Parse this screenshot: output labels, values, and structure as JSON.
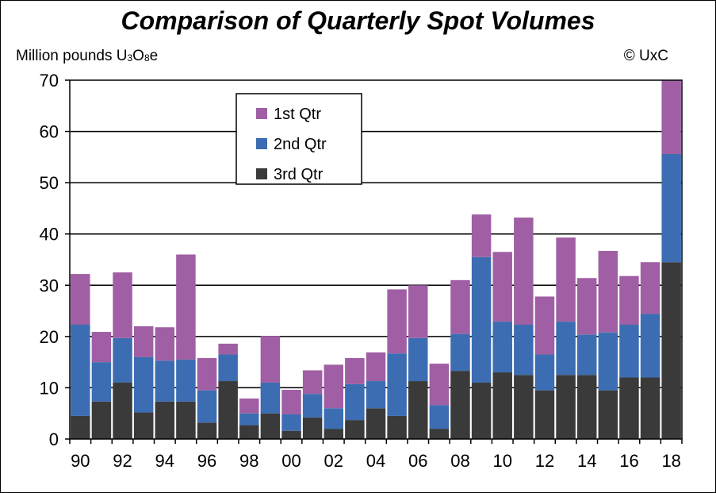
{
  "title": "Comparison of Quarterly Spot Volumes",
  "unit_label": {
    "prefix": "Million pounds U",
    "sub1": "3",
    "mid": "O",
    "sub2": "8",
    "suffix": "e"
  },
  "copyright": "© UxC",
  "colors": {
    "q1": "#A05FA4",
    "q2": "#3C6DB2",
    "q3": "#3A3A3A"
  },
  "chart_data": {
    "type": "bar",
    "stacked": true,
    "categories": [
      "90",
      "91",
      "92",
      "93",
      "94",
      "95",
      "96",
      "97",
      "98",
      "99",
      "00",
      "01",
      "02",
      "03",
      "04",
      "05",
      "06",
      "07",
      "08",
      "09",
      "10",
      "11",
      "12",
      "13",
      "14",
      "15",
      "16",
      "17",
      "18"
    ],
    "x_tick_labels": [
      "90",
      "92",
      "94",
      "96",
      "98",
      "00",
      "02",
      "04",
      "06",
      "08",
      "10",
      "12",
      "14",
      "16",
      "18"
    ],
    "series": [
      {
        "name": "3rd Qtr",
        "values": [
          4.5,
          7.3,
          11.0,
          5.2,
          7.3,
          7.3,
          3.2,
          11.3,
          2.7,
          5.0,
          1.6,
          4.2,
          2.0,
          3.7,
          6.0,
          4.5,
          11.3,
          2.0,
          13.3,
          11.0,
          13.0,
          12.5,
          9.5,
          12.5,
          12.5,
          9.5,
          12.0,
          12.0,
          34.5
        ]
      },
      {
        "name": "2nd Qtr",
        "values": [
          17.8,
          7.7,
          8.7,
          10.8,
          8.0,
          8.2,
          6.3,
          5.2,
          2.3,
          6.0,
          3.2,
          4.6,
          4.0,
          7.0,
          5.3,
          12.2,
          8.4,
          4.6,
          7.2,
          24.5,
          9.9,
          9.8,
          7.0,
          10.4,
          7.9,
          11.3,
          10.3,
          12.4,
          21.1
        ]
      },
      {
        "name": "1st Qtr",
        "values": [
          9.9,
          5.9,
          12.8,
          6.0,
          6.5,
          20.5,
          6.3,
          2.1,
          2.9,
          9.1,
          4.8,
          4.6,
          8.5,
          5.1,
          5.6,
          12.5,
          10.3,
          8.1,
          10.5,
          8.3,
          13.6,
          20.9,
          11.3,
          16.4,
          11.0,
          15.9,
          9.5,
          10.1,
          14.5
        ]
      }
    ],
    "legend_entries": [
      "1st Qtr",
      "2nd Qtr",
      "3rd Qtr"
    ],
    "legend_position": "top-left",
    "ylim": [
      0,
      70
    ],
    "y_ticks": [
      0,
      10,
      20,
      30,
      40,
      50,
      60,
      70
    ],
    "grid": true
  }
}
